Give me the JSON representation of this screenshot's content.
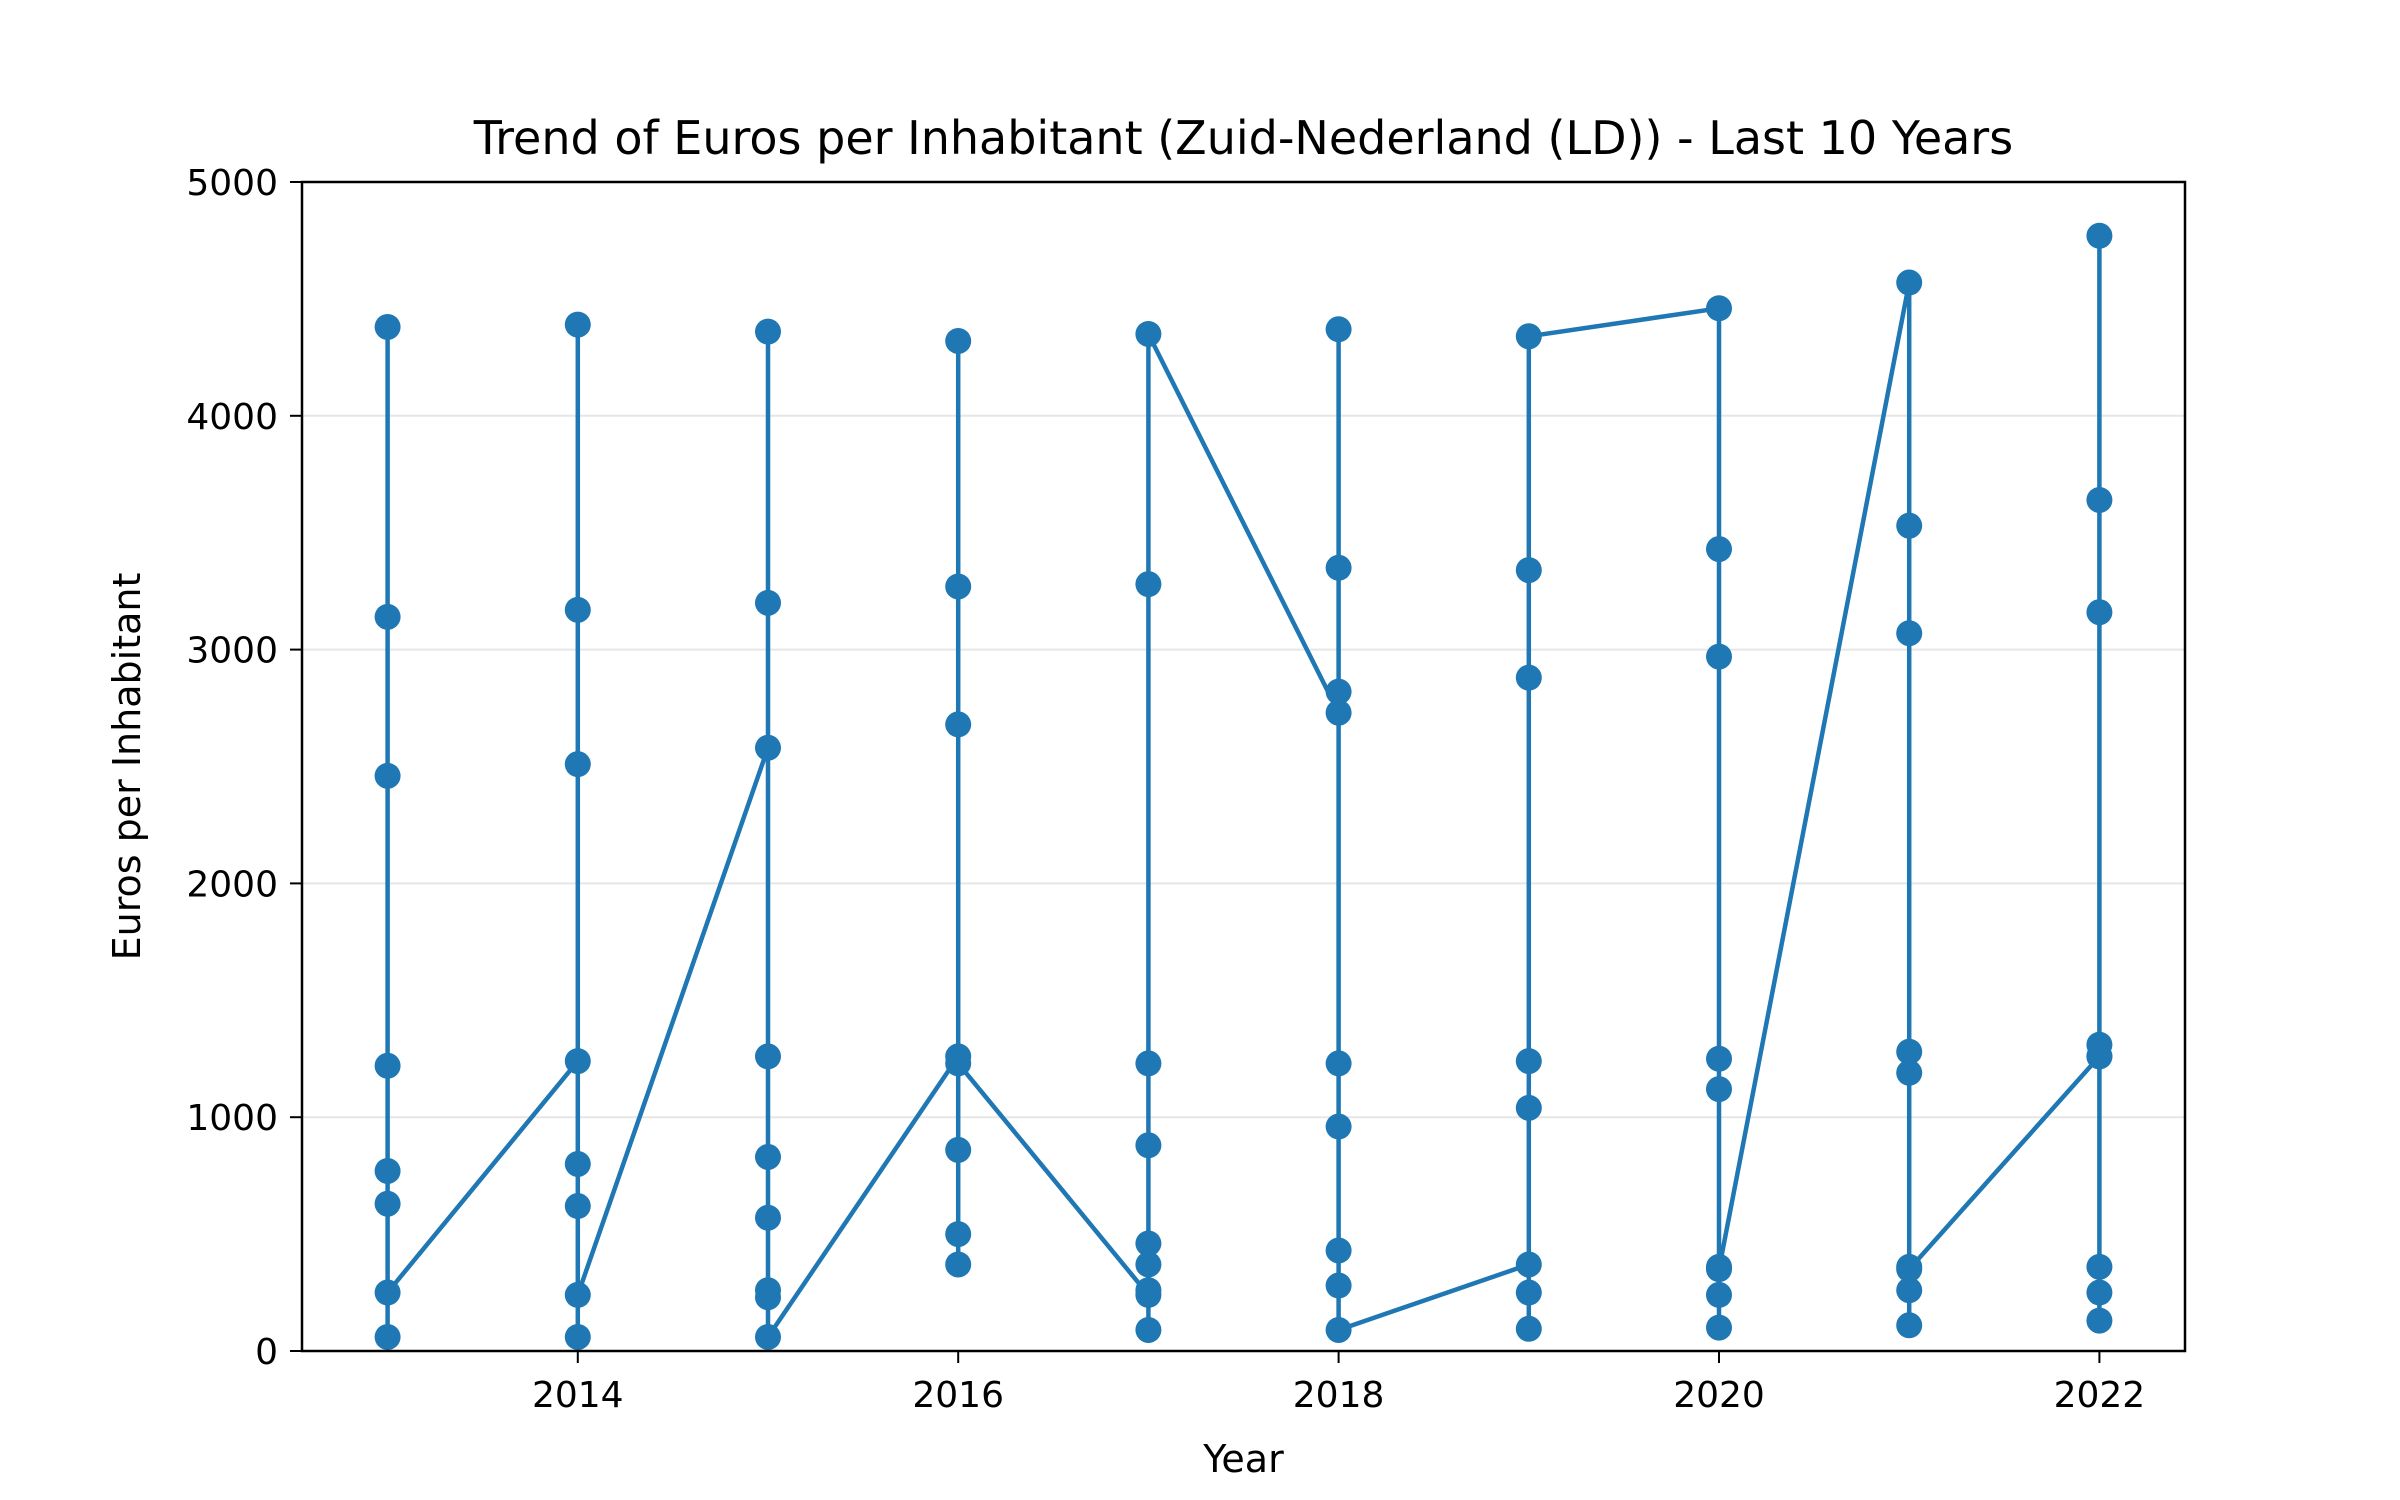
{
  "chart_data": {
    "type": "line",
    "title": "Trend of Euros per Inhabitant (Zuid-Nederland (LD)) - Last 10 Years",
    "xlabel": "Year",
    "ylabel": "Euros per Inhabitant",
    "xlim": [
      2012.55,
      2022.45
    ],
    "ylim": [
      0,
      5000
    ],
    "xticks": [
      2014,
      2016,
      2018,
      2020,
      2022
    ],
    "xtick_labels": [
      "2014",
      "2016",
      "2018",
      "2020",
      "2022"
    ],
    "yticks": [
      0,
      1000,
      2000,
      3000,
      4000,
      5000
    ],
    "ytick_labels": [
      "0",
      "1000",
      "2000",
      "3000",
      "4000",
      "5000"
    ],
    "grid": "horizontal",
    "colors": {
      "series": "#1f77b4",
      "grid": "#e6e6e6",
      "axis": "#000000"
    },
    "series": [
      {
        "x": [
          2013,
          2013,
          2013,
          2013,
          2013,
          2013,
          2013,
          2013,
          2014,
          2014,
          2014,
          2014,
          2014,
          2014,
          2014,
          2014,
          2015,
          2015,
          2015,
          2015,
          2015,
          2015,
          2015,
          2015,
          2015,
          2016,
          2016,
          2016,
          2016,
          2016,
          2016,
          2016,
          2016,
          2017,
          2017,
          2017,
          2017,
          2017,
          2017,
          2017,
          2017,
          2017,
          2018,
          2018,
          2018,
          2018,
          2018,
          2018,
          2018,
          2018,
          2018,
          2019,
          2019,
          2019,
          2019,
          2019,
          2019,
          2019,
          2019,
          2020,
          2020,
          2020,
          2020,
          2020,
          2020,
          2020,
          2020,
          2020,
          2021,
          2021,
          2021,
          2021,
          2021,
          2021,
          2021,
          2021,
          2021,
          2022,
          2022,
          2022,
          2022,
          2022,
          2022,
          2022,
          2022,
          2022
        ],
        "y": [
          4380,
          3140,
          2460,
          1220,
          770,
          630,
          60,
          250,
          1240,
          4390,
          3170,
          2510,
          800,
          620,
          60,
          240,
          2580,
          4360,
          3200,
          1260,
          830,
          570,
          260,
          230,
          60,
          1260,
          370,
          500,
          860,
          2680,
          4320,
          3270,
          1230,
          240,
          90,
          1230,
          880,
          460,
          370,
          260,
          3280,
          4350,
          2730,
          1230,
          960,
          2820,
          3350,
          4370,
          430,
          280,
          90,
          370,
          3340,
          2880,
          1240,
          1040,
          250,
          95,
          4340,
          4460,
          3430,
          2970,
          1250,
          1120,
          360,
          240,
          100,
          350,
          4570,
          3530,
          3070,
          1280,
          1190,
          360,
          260,
          110,
          350,
          1260,
          4770,
          3640,
          3160,
          1310,
          360,
          250,
          130,
          1260
        ]
      }
    ]
  }
}
